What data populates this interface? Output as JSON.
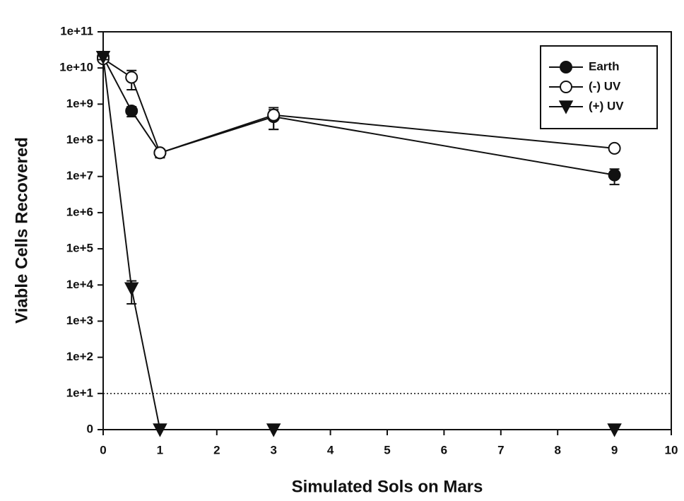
{
  "chart_data": {
    "type": "line",
    "x_label": "Simulated Sols on Mars",
    "y_label": "Viable Cells Recovered",
    "log_scale_y": true,
    "x": [
      0,
      0.5,
      1,
      3,
      9
    ],
    "series": [
      {
        "name": "Earth",
        "color": "#111111",
        "marker": "circle",
        "filled": true,
        "values": [
          20000000000,
          650000000,
          45000000,
          450000000,
          11000000
        ],
        "errors": [
          3000000000,
          200000000,
          12000000,
          250000000,
          5000000
        ]
      },
      {
        "name": "(-) UV",
        "color": "#111111",
        "marker": "circle",
        "filled": false,
        "values": [
          18000000000,
          5500000000,
          45000000,
          500000000,
          60000000
        ],
        "errors": [
          3000000000,
          3000000000,
          10000000,
          300000000,
          8000000
        ]
      },
      {
        "name": "(+) UV",
        "color": "#111111",
        "marker": "triangle-down",
        "filled": true,
        "values": [
          20000000000,
          8000,
          0,
          0,
          0
        ],
        "errors": [
          3000000000,
          5000,
          0,
          0,
          0
        ]
      }
    ],
    "reference_line": 10,
    "xlim": [
      0,
      10
    ],
    "xticks": [
      0,
      1,
      2,
      3,
      4,
      5,
      6,
      7,
      8,
      9,
      10
    ],
    "ylim": [
      0,
      100000000000
    ],
    "yticks": [
      {
        "value": 0,
        "label": "0"
      },
      {
        "value": 10,
        "label": "1e+1"
      },
      {
        "value": 100,
        "label": "1e+2"
      },
      {
        "value": 1000,
        "label": "1e+3"
      },
      {
        "value": 10000,
        "label": "1e+4"
      },
      {
        "value": 100000,
        "label": "1e+5"
      },
      {
        "value": 1000000,
        "label": "1e+6"
      },
      {
        "value": 10000000,
        "label": "1e+7"
      },
      {
        "value": 100000000,
        "label": "1e+8"
      },
      {
        "value": 1000000000,
        "label": "1e+9"
      },
      {
        "value": 10000000000,
        "label": "1e+10"
      },
      {
        "value": 100000000000,
        "label": "1e+11"
      }
    ],
    "legend_position": "upper right"
  }
}
